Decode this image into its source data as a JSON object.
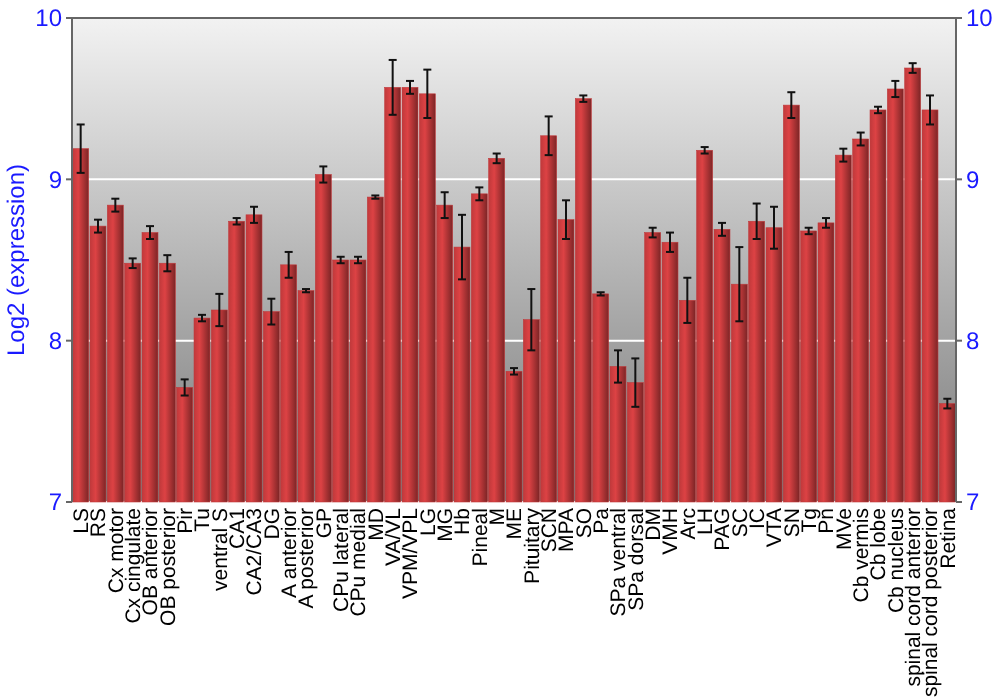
{
  "chart_data": {
    "type": "bar",
    "ylabel": "Log2 (expression)",
    "categories": [
      "LS",
      "RS",
      "Cx motor",
      "Cx cingulate",
      "OB anterior",
      "OB posterior",
      "Pir",
      "Tu",
      "ventral S",
      "CA1",
      "CA2/CA3",
      "DG",
      "A anterior",
      "A posterior",
      "GP",
      "CPu lateral",
      "CPu medial",
      "MD",
      "VA/VL",
      "VPM/VPL",
      "LG",
      "MG",
      "Hb",
      "Pineal",
      "M",
      "ME",
      "Pituitary",
      "SCN",
      "MPA",
      "SO",
      "Pa",
      "SPa ventral",
      "SPa dorsal",
      "DM",
      "VMH",
      "Arc",
      "LH",
      "PAG",
      "SC",
      "IC",
      "VTA",
      "SN",
      "Tg",
      "Pn",
      "MVe",
      "Cb vermis",
      "Cb lobe",
      "Cb nucleus",
      "spinal cord anterior",
      "spinal cord posterior",
      "Retina"
    ],
    "values": [
      9.19,
      8.71,
      8.84,
      8.48,
      8.67,
      8.48,
      7.71,
      8.14,
      8.19,
      8.74,
      8.78,
      8.18,
      8.47,
      8.31,
      9.03,
      8.5,
      8.5,
      8.89,
      9.57,
      9.57,
      9.53,
      8.84,
      8.58,
      8.91,
      9.13,
      7.81,
      8.13,
      9.27,
      8.75,
      9.5,
      8.29,
      7.84,
      7.74,
      8.67,
      8.61,
      8.25,
      9.18,
      8.69,
      8.35,
      8.74,
      8.7,
      9.46,
      8.68,
      8.73,
      9.15,
      9.25,
      9.43,
      9.56,
      9.69,
      9.43,
      7.61
    ],
    "errors": [
      0.15,
      0.04,
      0.04,
      0.03,
      0.04,
      0.05,
      0.05,
      0.02,
      0.1,
      0.02,
      0.05,
      0.08,
      0.08,
      0.01,
      0.05,
      0.02,
      0.02,
      0.01,
      0.17,
      0.04,
      0.15,
      0.08,
      0.2,
      0.04,
      0.03,
      0.02,
      0.19,
      0.12,
      0.12,
      0.02,
      0.01,
      0.1,
      0.15,
      0.03,
      0.06,
      0.14,
      0.02,
      0.04,
      0.23,
      0.11,
      0.13,
      0.08,
      0.02,
      0.03,
      0.04,
      0.04,
      0.02,
      0.05,
      0.03,
      0.09,
      0.03
    ],
    "color": "#c0393b",
    "ylim": [
      7,
      10
    ],
    "yticks": [
      7,
      8,
      9,
      10
    ],
    "y2lim": [
      7,
      10
    ],
    "y2ticks": [
      7,
      8,
      9,
      10
    ],
    "grid": "y"
  }
}
